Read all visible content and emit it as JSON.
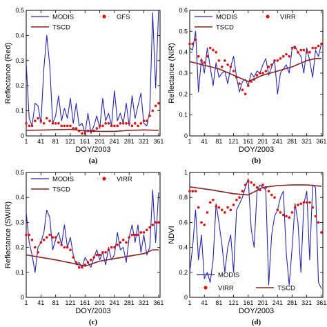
{
  "chart_data": [
    {
      "type": "line",
      "panel_label": "(a)",
      "xlabel": "DOY/2003",
      "ylabel": "Reflectance (Red)",
      "xlim": [
        1,
        365
      ],
      "ylim": [
        0,
        0.5
      ],
      "xticks": [
        "1",
        "41",
        "81",
        "121",
        "161",
        "201",
        "241",
        "281",
        "321",
        "361"
      ],
      "xtick_values": [
        1,
        41,
        81,
        121,
        161,
        201,
        241,
        281,
        321,
        361
      ],
      "yticks": [
        "0",
        "0.1",
        "0.2",
        "0.3",
        "0.4",
        "0.5"
      ],
      "ytick_values": [
        0,
        0.1,
        0.2,
        0.3,
        0.4,
        0.5
      ],
      "legend_layout": "top-3",
      "series": [
        {
          "name": "MODIS",
          "style": "line",
          "color": "#2424b8",
          "x": [
            1,
            9,
            17,
            25,
            33,
            41,
            49,
            57,
            65,
            73,
            81,
            89,
            97,
            105,
            113,
            121,
            129,
            137,
            145,
            153,
            161,
            169,
            177,
            185,
            193,
            201,
            209,
            217,
            225,
            233,
            241,
            249,
            257,
            265,
            273,
            281,
            289,
            297,
            305,
            313,
            321,
            329,
            337,
            345,
            353,
            361
          ],
          "y": [
            0.29,
            0.07,
            0.04,
            0.13,
            0.12,
            0.05,
            0.27,
            0.4,
            0.28,
            0.05,
            0.08,
            0.16,
            0.06,
            0.11,
            0.07,
            0.15,
            0.05,
            0.13,
            0.04,
            0.05,
            0.01,
            0.09,
            0.01,
            0.04,
            0.08,
            0.03,
            0.15,
            0.06,
            0.09,
            0.04,
            0.18,
            0.06,
            0.09,
            0.05,
            0.13,
            0.04,
            0.16,
            0.07,
            0.12,
            0.17,
            0.05,
            0.04,
            0.1,
            0.49,
            0.19,
            0.5
          ]
        },
        {
          "name": "GFS",
          "style": "dots",
          "color": "#e01010",
          "x": [
            1,
            9,
            17,
            25,
            33,
            41,
            49,
            57,
            65,
            73,
            81,
            89,
            97,
            105,
            113,
            121,
            129,
            137,
            145,
            153,
            161,
            169,
            177,
            185,
            193,
            201,
            209,
            217,
            225,
            233,
            241,
            249,
            257,
            265,
            273,
            281,
            289,
            297,
            305,
            313,
            321,
            329,
            337,
            345,
            353,
            361
          ],
          "y": [
            0.05,
            0.04,
            0.04,
            0.06,
            0.07,
            0.06,
            0.05,
            0.07,
            0.06,
            0.05,
            0.05,
            0.05,
            0.04,
            0.04,
            0.04,
            0.04,
            0.03,
            0.03,
            0.02,
            0.01,
            0.01,
            0.02,
            0.02,
            0.02,
            0.03,
            0.04,
            0.04,
            0.05,
            0.05,
            0.04,
            0.04,
            0.04,
            0.05,
            0.05,
            0.05,
            0.05,
            0.04,
            0.05,
            0.04,
            0.05,
            0.06,
            0.06,
            0.08,
            0.1,
            0.12,
            0.13
          ]
        },
        {
          "name": "TSCD",
          "style": "line",
          "color": "#8b1e1e",
          "x": [
            1,
            61,
            121,
            161,
            201,
            241,
            281,
            321,
            361
          ],
          "y": [
            0.022,
            0.024,
            0.026,
            0.02,
            0.018,
            0.018,
            0.022,
            0.024,
            0.022
          ]
        }
      ]
    },
    {
      "type": "line",
      "panel_label": "(b)",
      "xlabel": "DOY/2003",
      "ylabel": "Reflectance (NIR)",
      "xlim": [
        1,
        365
      ],
      "ylim": [
        0,
        0.6
      ],
      "xticks": [
        "1",
        "41",
        "81",
        "121",
        "161",
        "201",
        "241",
        "281",
        "321",
        "361"
      ],
      "xtick_values": [
        1,
        41,
        81,
        121,
        161,
        201,
        241,
        281,
        321,
        361
      ],
      "yticks": [
        "0",
        "0.1",
        "0.2",
        "0.3",
        "0.4",
        "0.5",
        "0.6"
      ],
      "ytick_values": [
        0,
        0.1,
        0.2,
        0.3,
        0.4,
        0.5,
        0.6
      ],
      "legend_layout": "top-3",
      "series": [
        {
          "name": "MODIS",
          "style": "line",
          "color": "#2424b8",
          "x": [
            1,
            9,
            17,
            25,
            33,
            41,
            49,
            57,
            65,
            73,
            81,
            89,
            97,
            105,
            113,
            121,
            129,
            137,
            145,
            153,
            161,
            169,
            177,
            185,
            193,
            201,
            209,
            217,
            225,
            233,
            241,
            249,
            257,
            265,
            273,
            281,
            289,
            297,
            305,
            313,
            321,
            329,
            337,
            345,
            353,
            361
          ],
          "y": [
            0.42,
            0.41,
            0.5,
            0.21,
            0.37,
            0.3,
            0.42,
            0.33,
            0.24,
            0.35,
            0.28,
            0.3,
            0.31,
            0.25,
            0.33,
            0.38,
            0.28,
            0.21,
            0.26,
            0.27,
            0.24,
            0.3,
            0.28,
            0.31,
            0.3,
            0.34,
            0.37,
            0.29,
            0.33,
            0.36,
            0.2,
            0.3,
            0.32,
            0.34,
            0.3,
            0.42,
            0.43,
            0.4,
            0.38,
            0.3,
            0.42,
            0.36,
            0.28,
            0.41,
            0.38,
            0.44
          ]
        },
        {
          "name": "VIRR",
          "style": "dots",
          "color": "#e01010",
          "x": [
            1,
            9,
            17,
            25,
            33,
            41,
            49,
            57,
            65,
            73,
            81,
            89,
            97,
            105,
            113,
            121,
            129,
            137,
            145,
            153,
            161,
            169,
            177,
            185,
            193,
            201,
            209,
            217,
            225,
            233,
            241,
            249,
            257,
            265,
            273,
            281,
            289,
            297,
            305,
            313,
            321,
            329,
            337,
            345,
            353,
            361
          ],
          "y": [
            0.44,
            0.44,
            0.46,
            0.38,
            0.36,
            0.35,
            0.38,
            0.42,
            0.41,
            0.4,
            0.36,
            0.33,
            0.36,
            0.34,
            0.33,
            0.31,
            0.28,
            0.25,
            0.22,
            0.2,
            0.24,
            0.26,
            0.27,
            0.29,
            0.3,
            0.3,
            0.31,
            0.33,
            0.34,
            0.36,
            0.36,
            0.37,
            0.38,
            0.39,
            0.38,
            0.42,
            0.42,
            0.4,
            0.41,
            0.41,
            0.4,
            0.4,
            0.42,
            0.42,
            0.43,
            0.44
          ]
        },
        {
          "name": "TSCD",
          "style": "line",
          "color": "#8b1e1e",
          "x": [
            1,
            81,
            161,
            201,
            241,
            281,
            321,
            345,
            361
          ],
          "y": [
            0.355,
            0.32,
            0.26,
            0.29,
            0.31,
            0.33,
            0.36,
            0.37,
            0.37
          ]
        }
      ]
    },
    {
      "type": "line",
      "panel_label": "(c)",
      "xlabel": "DOY/2003",
      "ylabel": "Reflectance (SWIR)",
      "xlim": [
        1,
        365
      ],
      "ylim": [
        0,
        0.5
      ],
      "xticks": [
        "1",
        "41",
        "81",
        "121",
        "161",
        "201",
        "241",
        "281",
        "321",
        "361"
      ],
      "xtick_values": [
        1,
        41,
        81,
        121,
        161,
        201,
        241,
        281,
        321,
        361
      ],
      "yticks": [
        "0",
        "0.1",
        "0.2",
        "0.3",
        "0.4",
        "0.5"
      ],
      "ytick_values": [
        0,
        0.1,
        0.2,
        0.3,
        0.4,
        0.5
      ],
      "legend_layout": "top-3",
      "series": [
        {
          "name": "MODIS",
          "style": "line",
          "color": "#2424b8",
          "x": [
            1,
            9,
            17,
            25,
            33,
            41,
            49,
            57,
            65,
            73,
            81,
            89,
            97,
            105,
            113,
            121,
            129,
            137,
            145,
            153,
            161,
            169,
            177,
            185,
            193,
            201,
            209,
            217,
            225,
            233,
            241,
            249,
            257,
            265,
            273,
            281,
            289,
            297,
            305,
            313,
            321,
            329,
            337,
            345,
            353,
            361
          ],
          "y": [
            0.34,
            0.22,
            0.17,
            0.1,
            0.2,
            0.22,
            0.26,
            0.35,
            0.32,
            0.19,
            0.23,
            0.26,
            0.21,
            0.29,
            0.2,
            0.24,
            0.17,
            0.13,
            0.14,
            0.12,
            0.16,
            0.14,
            0.12,
            0.16,
            0.19,
            0.15,
            0.18,
            0.13,
            0.2,
            0.15,
            0.17,
            0.26,
            0.19,
            0.2,
            0.14,
            0.24,
            0.29,
            0.22,
            0.29,
            0.18,
            0.25,
            0.17,
            0.2,
            0.43,
            0.22,
            0.42
          ]
        },
        {
          "name": "VIRR",
          "style": "dots",
          "color": "#e01010",
          "x": [
            1,
            9,
            17,
            25,
            33,
            41,
            49,
            57,
            65,
            73,
            81,
            89,
            97,
            105,
            113,
            121,
            129,
            137,
            145,
            153,
            161,
            169,
            177,
            185,
            193,
            201,
            209,
            217,
            225,
            233,
            241,
            249,
            257,
            265,
            273,
            281,
            289,
            297,
            305,
            313,
            321,
            329,
            337,
            345,
            353,
            361
          ],
          "y": [
            0.25,
            0.25,
            0.23,
            0.2,
            0.18,
            0.22,
            0.23,
            0.24,
            0.25,
            0.24,
            0.24,
            0.22,
            0.21,
            0.2,
            0.2,
            0.19,
            0.16,
            0.14,
            0.12,
            0.12,
            0.13,
            0.14,
            0.15,
            0.16,
            0.17,
            0.17,
            0.18,
            0.18,
            0.19,
            0.2,
            0.2,
            0.21,
            0.22,
            0.23,
            0.22,
            0.24,
            0.25,
            0.25,
            0.25,
            0.26,
            0.26,
            0.27,
            0.28,
            0.29,
            0.3,
            0.3
          ]
        },
        {
          "name": "TSCD",
          "style": "line",
          "color": "#8b1e1e",
          "x": [
            1,
            41,
            81,
            121,
            161,
            201,
            241,
            281,
            321,
            345,
            361
          ],
          "y": [
            0.17,
            0.16,
            0.15,
            0.138,
            0.125,
            0.145,
            0.155,
            0.165,
            0.175,
            0.19,
            0.19
          ]
        }
      ]
    },
    {
      "type": "line",
      "panel_label": "(d)",
      "xlabel": "DOY/2003",
      "ylabel": "NDVI",
      "xlim": [
        1,
        365
      ],
      "ylim": [
        0,
        1
      ],
      "xticks": [
        "1",
        "41",
        "81",
        "121",
        "161",
        "201",
        "241",
        "281",
        "321",
        "361"
      ],
      "xtick_values": [
        1,
        41,
        81,
        121,
        161,
        201,
        241,
        281,
        321,
        361
      ],
      "yticks": [
        "0",
        "0.2",
        "0.4",
        "0.6",
        "0.8",
        "1"
      ],
      "ytick_values": [
        0,
        0.2,
        0.4,
        0.6,
        0.8,
        1
      ],
      "legend_layout": "bottom",
      "series": [
        {
          "name": "MODIS",
          "style": "line",
          "color": "#2424b8",
          "x": [
            1,
            9,
            17,
            25,
            33,
            41,
            49,
            57,
            65,
            73,
            81,
            89,
            97,
            105,
            113,
            121,
            129,
            137,
            145,
            153,
            161,
            169,
            177,
            185,
            193,
            201,
            209,
            217,
            225,
            233,
            241,
            249,
            257,
            265,
            273,
            281,
            289,
            297,
            305,
            313,
            321,
            329,
            337,
            345,
            353,
            361
          ],
          "y": [
            0.2,
            0.4,
            0.7,
            0.3,
            0.5,
            0.15,
            0.2,
            0.12,
            0.3,
            0.75,
            0.6,
            0.42,
            0.2,
            0.4,
            0.5,
            0.2,
            0.7,
            0.75,
            0.8,
            0.88,
            0.95,
            0.55,
            0.4,
            0.85,
            0.9,
            0.88,
            0.86,
            0.1,
            0.5,
            0.65,
            0.7,
            0.8,
            0.85,
            0.35,
            0.1,
            0.4,
            0.75,
            0.6,
            0.2,
            0.75,
            0.85,
            0.3,
            0.9,
            0.88,
            0.12,
            0.07
          ]
        },
        {
          "name": "VIRR",
          "style": "dots",
          "color": "#e01010",
          "x": [
            1,
            9,
            17,
            25,
            33,
            41,
            49,
            57,
            65,
            73,
            81,
            89,
            97,
            105,
            113,
            121,
            129,
            137,
            145,
            153,
            161,
            169,
            177,
            185,
            193,
            201,
            209,
            217,
            225,
            233,
            241,
            249,
            257,
            265,
            273,
            281,
            289,
            297,
            305,
            313,
            321,
            329,
            337,
            345,
            353,
            361
          ],
          "y": [
            0.85,
            0.85,
            0.85,
            0.72,
            0.6,
            0.58,
            0.68,
            0.76,
            0.78,
            0.73,
            0.72,
            0.7,
            0.68,
            0.72,
            0.7,
            0.74,
            0.78,
            0.8,
            0.85,
            0.9,
            0.93,
            0.92,
            0.9,
            0.88,
            0.86,
            0.9,
            0.88,
            0.85,
            0.82,
            0.8,
            0.7,
            0.68,
            0.66,
            0.65,
            0.64,
            0.68,
            0.72,
            0.74,
            0.75,
            0.76,
            0.76,
            0.76,
            0.72,
            0.65,
            0.6,
            0.52
          ]
        },
        {
          "name": "TSCD",
          "style": "line",
          "color": "#8b1e1e",
          "x": [
            1,
            61,
            121,
            161,
            201,
            241,
            281,
            321,
            361
          ],
          "y": [
            0.885,
            0.86,
            0.83,
            0.82,
            0.88,
            0.895,
            0.9,
            0.9,
            0.89
          ]
        }
      ]
    }
  ]
}
